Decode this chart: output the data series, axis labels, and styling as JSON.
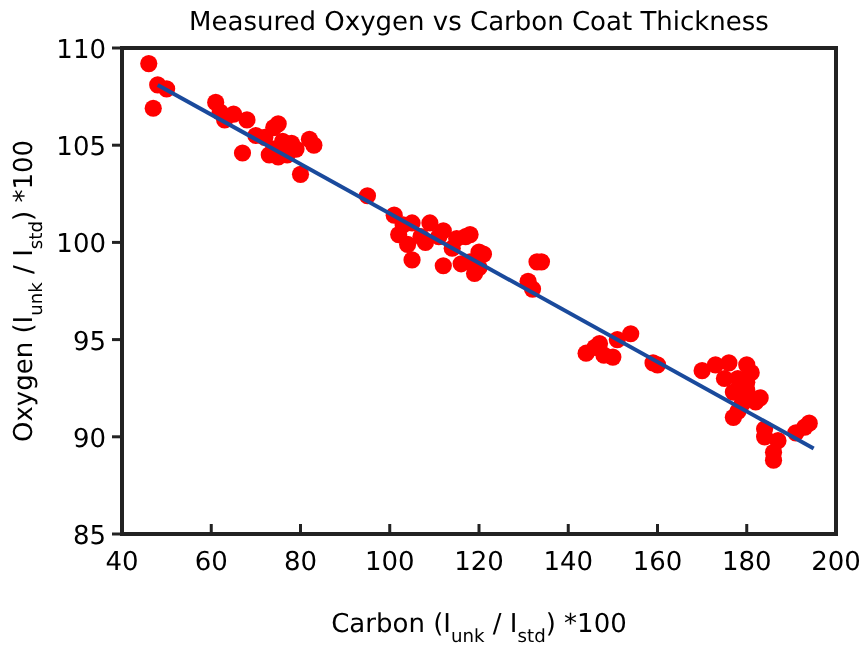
{
  "chart_data": {
    "type": "scatter",
    "title": "Measured Oxygen vs Carbon Coat Thickness",
    "xlabel": "Carbon (I$_{unk}$ / I$_{std}$) *100",
    "ylabel": "Oxygen (I$_{unk}$ / I$_{std}$) *100",
    "xlim": [
      40,
      200
    ],
    "ylim": [
      85,
      110
    ],
    "xticks": [
      40,
      60,
      80,
      100,
      120,
      140,
      160,
      180,
      200
    ],
    "yticks": [
      85,
      90,
      95,
      100,
      105,
      110
    ],
    "grid": false,
    "series": [
      {
        "color": "#ff0000",
        "marker": "circle",
        "x": [
          46,
          47,
          48,
          50,
          61,
          62,
          63,
          65,
          67,
          68,
          72,
          73,
          74,
          75,
          75,
          76,
          77,
          78,
          79,
          80,
          82,
          83,
          70,
          74,
          95,
          101,
          102,
          103,
          104,
          105,
          107,
          108,
          109,
          111,
          112,
          112,
          114,
          115,
          116,
          117,
          118,
          119,
          120,
          120,
          121,
          118,
          105,
          131,
          132,
          133,
          134,
          144,
          146,
          147,
          148,
          150,
          151,
          154,
          159,
          160,
          170,
          173,
          175,
          176,
          177,
          178,
          179,
          180,
          181,
          182,
          183,
          184,
          184,
          177,
          178,
          186,
          186,
          187,
          191,
          193,
          194,
          180,
          180
        ],
        "values": [
          109.2,
          106.9,
          108.1,
          107.9,
          107.2,
          106.7,
          106.3,
          106.6,
          104.6,
          106.3,
          105.4,
          104.5,
          105.9,
          104.4,
          106.1,
          105.2,
          104.5,
          105.1,
          104.8,
          103.5,
          105.3,
          105.0,
          105.5,
          104.8,
          102.4,
          101.4,
          100.4,
          100.9,
          99.9,
          101.0,
          100.3,
          100.0,
          101.0,
          100.3,
          100.6,
          98.8,
          99.7,
          100.2,
          98.9,
          100.3,
          99.0,
          98.4,
          98.7,
          99.5,
          99.4,
          100.4,
          99.1,
          98.0,
          97.6,
          99.0,
          99.0,
          94.3,
          94.6,
          94.8,
          94.2,
          94.1,
          95.0,
          95.3,
          93.8,
          93.7,
          93.4,
          93.7,
          93.0,
          93.8,
          92.3,
          93.0,
          91.7,
          92.4,
          93.3,
          91.8,
          92.0,
          90.4,
          90.0,
          91.0,
          91.3,
          88.8,
          89.2,
          89.8,
          90.2,
          90.5,
          90.7,
          92.8,
          93.7
        ]
      },
      {
        "type": "line",
        "color": "#1a4a9c",
        "x": [
          48,
          195
        ],
        "values": [
          108.1,
          89.4
        ]
      }
    ]
  }
}
